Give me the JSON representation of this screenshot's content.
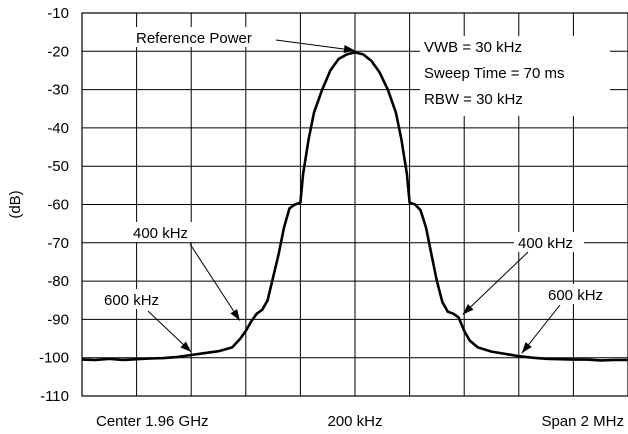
{
  "chart_data": {
    "type": "line",
    "title": "",
    "ylabel": "(dB)",
    "xlabel": "",
    "ylim": [
      -110,
      -10
    ],
    "xlim": [
      -1000,
      1000
    ],
    "x_unit": "kHz",
    "grid": true,
    "y_ticks": [
      "-10",
      "-20",
      "-30",
      "-40",
      "-50",
      "-60",
      "-70",
      "-80",
      "-90",
      "-100",
      "-110"
    ],
    "x_tick_labels": {
      "left": "Center 1.96 GHz",
      "center": "200 kHz",
      "right": "Span 2 MHz"
    },
    "annotations": {
      "reference_power": "Reference Power",
      "settings": [
        "VWB = 30 kHz",
        "Sweep Time = 70 ms",
        "RBW = 30 kHz"
      ],
      "offset_400_left": "400 kHz",
      "offset_400_right": "400 kHz",
      "offset_600_left": "600 kHz",
      "offset_600_right": "600 kHz"
    },
    "series": [
      {
        "line_color": "#000000",
        "points": [
          [
            -1000,
            -100.5
          ],
          [
            -950,
            -100.6
          ],
          [
            -900,
            -100.3
          ],
          [
            -850,
            -100.6
          ],
          [
            -800,
            -100.4
          ],
          [
            -750,
            -100.2
          ],
          [
            -700,
            -100.1
          ],
          [
            -650,
            -99.8
          ],
          [
            -600,
            -99.3
          ],
          [
            -550,
            -98.8
          ],
          [
            -500,
            -98.3
          ],
          [
            -450,
            -97.3
          ],
          [
            -420,
            -95.0
          ],
          [
            -400,
            -93.0
          ],
          [
            -380,
            -90.5
          ],
          [
            -360,
            -88.5
          ],
          [
            -340,
            -87.5
          ],
          [
            -320,
            -85.0
          ],
          [
            -300,
            -79.0
          ],
          [
            -280,
            -73.0
          ],
          [
            -260,
            -66.0
          ],
          [
            -240,
            -61.0
          ],
          [
            -220,
            -60.0
          ],
          [
            -200,
            -59.5
          ],
          [
            -190,
            -52.0
          ],
          [
            -170,
            -43.0
          ],
          [
            -150,
            -36.0
          ],
          [
            -120,
            -30.0
          ],
          [
            -90,
            -25.0
          ],
          [
            -60,
            -22.0
          ],
          [
            -30,
            -20.8
          ],
          [
            0,
            -20.3
          ],
          [
            30,
            -20.8
          ],
          [
            60,
            -22.5
          ],
          [
            90,
            -25.5
          ],
          [
            120,
            -30.0
          ],
          [
            150,
            -36.0
          ],
          [
            170,
            -43.0
          ],
          [
            190,
            -52.0
          ],
          [
            200,
            -59.5
          ],
          [
            220,
            -60.0
          ],
          [
            240,
            -61.5
          ],
          [
            260,
            -66.0
          ],
          [
            280,
            -73.0
          ],
          [
            300,
            -80.0
          ],
          [
            320,
            -85.5
          ],
          [
            340,
            -88.0
          ],
          [
            360,
            -88.5
          ],
          [
            380,
            -89.5
          ],
          [
            400,
            -93.0
          ],
          [
            420,
            -95.5
          ],
          [
            450,
            -97.3
          ],
          [
            500,
            -98.4
          ],
          [
            550,
            -99.0
          ],
          [
            600,
            -99.6
          ],
          [
            650,
            -100.0
          ],
          [
            700,
            -100.3
          ],
          [
            750,
            -100.4
          ],
          [
            800,
            -100.5
          ],
          [
            850,
            -100.5
          ],
          [
            900,
            -100.7
          ],
          [
            950,
            -100.6
          ],
          [
            1000,
            -100.6
          ]
        ]
      }
    ]
  }
}
